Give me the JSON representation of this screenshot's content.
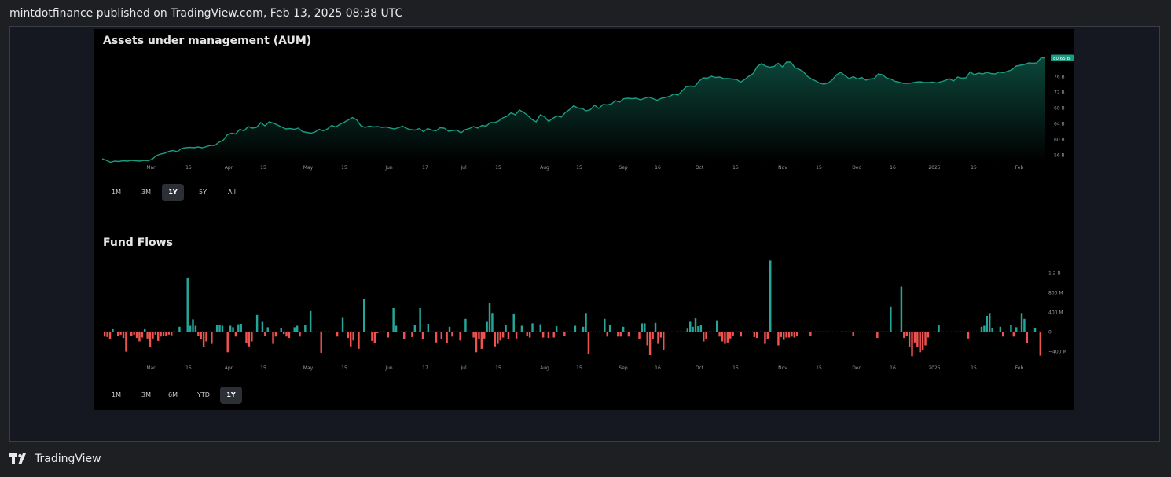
{
  "header": {
    "published_text": "mintdotfinance published on TradingView.com, Feb 13, 2025 08:38 UTC"
  },
  "footer": {
    "brand": "TradingView"
  },
  "colors": {
    "aum_line": "#1a9c80",
    "inflow": "#26a69a",
    "outflow": "#ef5350",
    "last_price_bg": "#1a9c80"
  },
  "aum_panel": {
    "ranges": [
      "1M",
      "3M",
      "1Y",
      "5Y",
      "All"
    ],
    "active_range": "1Y",
    "last_value_label": "80.65 B"
  },
  "flows_panel": {
    "ranges": [
      "1M",
      "3M",
      "6M",
      "YTD",
      "1Y"
    ],
    "active_range": "1Y"
  },
  "chart_data": [
    {
      "type": "area",
      "title": "Assets under management (AUM)",
      "xlabel": "",
      "ylabel": "",
      "x_tick_labels": [
        "Mar",
        "15",
        "Apr",
        "15",
        "May",
        "15",
        "Jun",
        "17",
        "Jul",
        "15",
        "Aug",
        "15",
        "Sep",
        "16",
        "Oct",
        "15",
        "Nov",
        "15",
        "Dec",
        "16",
        "2025",
        "15",
        "Feb"
      ],
      "y_tick_labels": [
        "56 B",
        "60 B",
        "64 B",
        "68 B",
        "72 B",
        "76 B"
      ],
      "ylim": [
        54,
        82
      ],
      "grid": false,
      "series": [
        {
          "values": [
            55.0,
            54.6,
            54.1,
            54.4,
            54.3,
            54.5,
            54.4,
            54.6,
            54.5,
            54.4,
            54.6,
            54.5,
            54.9,
            55.8,
            56.2,
            56.4,
            56.9,
            57.1,
            56.8,
            57.6,
            57.8,
            57.9,
            57.8,
            58.0,
            57.8,
            58.1,
            58.4,
            58.4,
            59.2,
            59.7,
            61.1,
            61.5,
            61.3,
            62.5,
            62.1,
            63.2,
            62.8,
            63.0,
            64.2,
            63.4,
            64.4,
            64.1,
            63.6,
            63.1,
            62.6,
            62.7,
            62.5,
            62.8,
            61.9,
            61.7,
            61.5,
            61.8,
            62.5,
            62.1,
            62.6,
            63.5,
            63.1,
            63.8,
            64.3,
            64.9,
            65.5,
            64.9,
            63.4,
            63.0,
            63.3,
            63.1,
            63.2,
            63.0,
            63.1,
            62.8,
            62.6,
            62.9,
            63.3,
            62.7,
            62.4,
            62.3,
            62.7,
            61.9,
            62.7,
            62.3,
            62.1,
            62.9,
            62.8,
            62.0,
            62.2,
            62.3,
            61.6,
            62.4,
            62.7,
            63.2,
            62.8,
            63.5,
            63.3,
            64.2,
            64.2,
            64.6,
            65.4,
            65.8,
            66.7,
            66.2,
            67.4,
            66.8,
            66.0,
            65.0,
            64.4,
            66.2,
            65.7,
            64.5,
            65.3,
            65.9,
            65.6,
            66.8,
            67.5,
            68.5,
            67.9,
            67.8,
            67.2,
            67.5,
            68.6,
            67.8,
            68.8,
            68.7,
            68.9,
            69.8,
            69.4,
            70.3,
            70.4,
            70.3,
            70.4,
            70.0,
            70.4,
            70.7,
            70.3,
            69.9,
            70.4,
            70.6,
            70.9,
            71.5,
            71.2,
            72.3,
            73.4,
            73.5,
            73.4,
            74.7,
            75.6,
            75.5,
            76.0,
            75.7,
            75.8,
            75.4,
            75.4,
            75.3,
            75.2,
            74.5,
            75.2,
            76.0,
            76.7,
            78.5,
            79.2,
            78.6,
            78.3,
            78.5,
            79.3,
            78.4,
            79.6,
            79.6,
            78.2,
            77.8,
            77.2,
            76.0,
            75.3,
            74.8,
            74.2,
            74.0,
            74.3,
            75.1,
            76.4,
            77.0,
            76.2,
            75.4,
            75.9,
            75.3,
            75.7,
            75.0,
            75.3,
            75.4,
            76.6,
            76.4,
            75.5,
            75.3,
            74.7,
            74.5,
            74.2,
            74.2,
            74.3,
            74.5,
            74.6,
            74.4,
            74.4,
            74.5,
            74.3,
            74.6,
            74.9,
            75.4,
            74.8,
            75.8,
            75.5,
            75.6,
            77.1,
            76.4,
            76.8,
            76.6,
            77.0,
            76.7,
            76.6,
            77.1,
            76.9,
            77.3,
            77.6,
            78.6,
            78.8,
            79.0,
            79.4,
            79.3,
            79.4,
            80.7,
            80.7
          ]
        }
      ]
    },
    {
      "type": "bar",
      "title": "Fund Flows",
      "xlabel": "",
      "ylabel": "",
      "x_tick_labels": [
        "Mar",
        "15",
        "Apr",
        "15",
        "May",
        "15",
        "Jun",
        "17",
        "Jul",
        "15",
        "Aug",
        "15",
        "Sep",
        "16",
        "Oct",
        "15",
        "Nov",
        "15",
        "Dec",
        "16",
        "2025",
        "15",
        "Feb"
      ],
      "y_tick_labels": [
        "1.2 B",
        "800 M",
        "400 M",
        "0",
        "−400 M"
      ],
      "ylim": [
        -800,
        1600
      ],
      "unit": "M",
      "grid": false,
      "series": [
        {
          "values": [
            -100,
            -110,
            -150,
            50,
            0,
            -80,
            -60,
            -130,
            -410,
            0,
            -90,
            -60,
            -130,
            -200,
            -120,
            50,
            -140,
            -310,
            -140,
            -60,
            -190,
            -100,
            -80,
            -90,
            -60,
            -75,
            0,
            0,
            100,
            0,
            0,
            1090,
            120,
            250,
            120,
            -85,
            -150,
            -310,
            -200,
            0,
            -250,
            0,
            130,
            130,
            120,
            0,
            -420,
            120,
            90,
            -100,
            150,
            160,
            0,
            -240,
            -300,
            -200,
            0,
            340,
            0,
            200,
            -80,
            90,
            0,
            -250,
            -100,
            0,
            80,
            -50,
            -100,
            -130,
            0,
            90,
            120,
            -100,
            0,
            130,
            0,
            420,
            0,
            0,
            0,
            -430,
            0,
            0,
            0,
            0,
            0,
            -100,
            0,
            280,
            0,
            -130,
            -300,
            -180,
            0,
            -350,
            0,
            660,
            0,
            0,
            -190,
            -230,
            -30,
            0,
            0,
            0,
            -120,
            0,
            480,
            120,
            0,
            0,
            -150,
            0,
            0,
            -110,
            140,
            0,
            480,
            -150,
            0,
            160,
            0,
            0,
            -220,
            0,
            -150,
            0,
            -240,
            100,
            -100,
            0,
            0,
            -180,
            0,
            260,
            0,
            0,
            -120,
            -420,
            -160,
            -350,
            -140,
            200,
            580,
            380,
            -300,
            -250,
            -180,
            -120,
            130,
            -150,
            0,
            370,
            -140,
            0,
            120,
            0,
            -80,
            -120,
            170,
            0,
            0,
            150,
            -120,
            0,
            -130,
            0,
            -120,
            110,
            0,
            0,
            -90,
            0,
            0,
            0,
            120,
            0,
            0,
            100,
            380,
            -450,
            0,
            0,
            0,
            0,
            0,
            260,
            -100,
            140,
            0,
            0,
            -100,
            -100,
            100,
            0,
            -100,
            0,
            0,
            0,
            -150,
            170,
            170,
            -280,
            -480,
            -150,
            180,
            -250,
            -120,
            -370,
            0,
            0,
            0,
            0,
            0,
            0,
            0,
            0,
            60,
            200,
            100,
            270,
            110,
            140,
            -200,
            -150,
            0,
            0,
            0,
            230,
            -100,
            -200,
            -250,
            -220,
            -140,
            -90,
            0,
            0,
            -100,
            0,
            0,
            0,
            0,
            -110,
            -130,
            0,
            0,
            -250,
            -150,
            1450,
            0,
            0,
            -280,
            -110,
            -170,
            -120,
            -120,
            -100,
            -120,
            -80,
            0,
            0,
            0,
            0,
            -90,
            0,
            0,
            0,
            0,
            0,
            0,
            0,
            0,
            0,
            0,
            0,
            0,
            0,
            0,
            0,
            -80,
            0,
            0,
            0,
            0,
            0,
            0,
            0,
            0,
            -130,
            0,
            0,
            0,
            0,
            500,
            0,
            0,
            0,
            920,
            -130,
            -80,
            -310,
            -500,
            -220,
            -320,
            -420,
            -370,
            -280,
            -120,
            0,
            0,
            0,
            130,
            0,
            0,
            0,
            0,
            0,
            0,
            0,
            0,
            0,
            0,
            -140,
            0,
            0,
            0,
            0,
            100,
            120,
            320,
            380,
            80,
            0,
            0,
            100,
            -100,
            0,
            0,
            130,
            -100,
            90,
            0,
            380,
            260,
            -240,
            0,
            0,
            80,
            0,
            -490
          ]
        }
      ]
    }
  ]
}
